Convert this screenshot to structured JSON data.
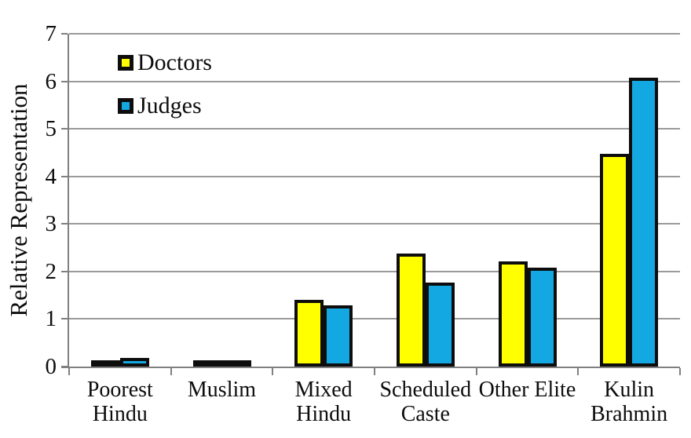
{
  "chart_data": {
    "type": "bar",
    "title": "",
    "categories": [
      "Poorest Hindu",
      "Muslim",
      "Mixed Hindu",
      "Scheduled Caste",
      "Other Elite",
      "Kulin Brahmin"
    ],
    "category_label_lines": [
      [
        "Poorest",
        "Hindu"
      ],
      [
        "Muslim"
      ],
      [
        "Mixed",
        "Hindu"
      ],
      [
        "Scheduled",
        "Caste"
      ],
      [
        "Other Elite"
      ],
      [
        "Kulin",
        "Brahmin"
      ]
    ],
    "series": [
      {
        "name": "Doctors",
        "color": "#FFFF00",
        "values": [
          0.07,
          0.11,
          1.41,
          2.38,
          2.22,
          4.47
        ]
      },
      {
        "name": "Judges",
        "color": "#14A8E3",
        "values": [
          0.18,
          0.14,
          1.29,
          1.77,
          2.08,
          6.07
        ]
      }
    ],
    "xlabel": "",
    "ylabel": "Relative Representation",
    "ylim": [
      0,
      7
    ],
    "yticks": [
      0,
      1,
      2,
      3,
      4,
      5,
      6,
      7
    ],
    "grid": true,
    "legend_position": "top-left-inside",
    "colors": {
      "bar_border": "#0d0d0d",
      "gridline": "#9a9a9a",
      "axis": "#808080",
      "text": "#0d0d0d",
      "background": "#ffffff"
    }
  }
}
